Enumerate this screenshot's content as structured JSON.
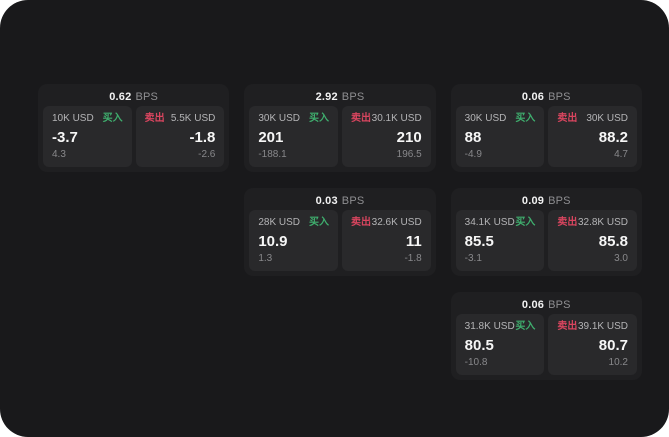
{
  "labels": {
    "bps": "BPS",
    "buy": "买入",
    "sell": "卖出"
  },
  "colors": {
    "app_background": "#19191b",
    "card_background": "#1f1f21",
    "panel_background": "#29292b",
    "buy_accent": "#3fae6e",
    "sell_accent": "#d9455f"
  },
  "cards": [
    {
      "bps": "0.62",
      "buy": {
        "amount": "10K USD",
        "price": "-3.7",
        "delta": "4.3"
      },
      "sell": {
        "amount": "5.5K USD",
        "price": "-1.8",
        "delta": "-2.6"
      }
    },
    {
      "bps": "2.92",
      "buy": {
        "amount": "30K USD",
        "price": "201",
        "delta": "-188.1"
      },
      "sell": {
        "amount": "30.1K USD",
        "price": "210",
        "delta": "196.5"
      }
    },
    {
      "bps": "0.03",
      "buy": {
        "amount": "28K USD",
        "price": "10.9",
        "delta": "1.3"
      },
      "sell": {
        "amount": "32.6K USD",
        "price": "11",
        "delta": "-1.8"
      }
    },
    {
      "bps": "0.06",
      "buy": {
        "amount": "30K USD",
        "price": "88",
        "delta": "-4.9"
      },
      "sell": {
        "amount": "30K USD",
        "price": "88.2",
        "delta": "4.7"
      }
    },
    {
      "bps": "0.09",
      "buy": {
        "amount": "34.1K USD",
        "price": "85.5",
        "delta": "-3.1"
      },
      "sell": {
        "amount": "32.8K USD",
        "price": "85.8",
        "delta": "3.0"
      }
    },
    {
      "bps": "0.06",
      "buy": {
        "amount": "31.8K USD",
        "price": "80.5",
        "delta": "-10.8"
      },
      "sell": {
        "amount": "39.1K USD",
        "price": "80.7",
        "delta": "10.2"
      }
    }
  ]
}
